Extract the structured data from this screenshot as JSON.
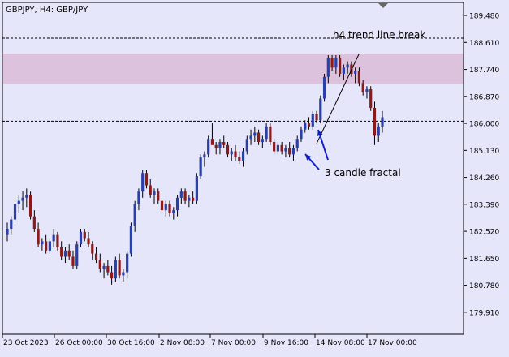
{
  "header": {
    "symbol_label": "GBPJPY, H4:  GBP/JPY"
  },
  "colors": {
    "background": "#e6e6fa",
    "bull_candle": "#2a3fa8",
    "bear_candle": "#8b1a1a",
    "wick": "#000000",
    "zone": "#dcc2dc",
    "arrow": "#1020c8",
    "axis_text": "#000000"
  },
  "annotations": {
    "trend_break_label": "h4 trend line break",
    "fractal_label": "3 candle fractal"
  },
  "chart_data": {
    "type": "candlestick",
    "title": "GBPJPY, H4:  GBP/JPY",
    "ylim": [
      179.2,
      189.9
    ],
    "y_ticks": [
      "189.480",
      "188.610",
      "187.740",
      "186.870",
      "186.000",
      "185.130",
      "184.260",
      "183.390",
      "182.520",
      "181.650",
      "180.780",
      "179.910"
    ],
    "x_ticks": [
      "23 Oct 2023",
      "26 Oct 00:00",
      "30 Oct 16:00",
      "2 Nov 08:00",
      "7 Nov 00:00",
      "9 Nov 16:00",
      "14 Nov 08:00",
      "17 Nov 00:00"
    ],
    "levels": {
      "upper_dashed": 188.75,
      "lower_dashed": 186.07
    },
    "zone": {
      "top": 188.25,
      "bottom": 187.28
    },
    "trendline": {
      "start": 185.35,
      "end": 188.25
    },
    "grid": false,
    "candles": [
      [
        182.4,
        182.8,
        182.2,
        182.6
      ],
      [
        182.6,
        183.0,
        182.4,
        182.9
      ],
      [
        182.9,
        183.6,
        182.8,
        183.4
      ],
      [
        183.4,
        183.7,
        183.1,
        183.5
      ],
      [
        183.5,
        183.8,
        183.2,
        183.6
      ],
      [
        183.6,
        183.9,
        183.3,
        183.7
      ],
      [
        183.7,
        183.8,
        182.9,
        183.0
      ],
      [
        183.0,
        183.2,
        182.5,
        182.6
      ],
      [
        182.6,
        182.8,
        182.0,
        182.1
      ],
      [
        182.1,
        182.3,
        181.9,
        182.2
      ],
      [
        182.2,
        182.4,
        181.8,
        181.9
      ],
      [
        181.9,
        182.3,
        181.8,
        182.2
      ],
      [
        182.2,
        182.6,
        182.0,
        182.4
      ],
      [
        182.4,
        182.5,
        181.9,
        182.0
      ],
      [
        182.0,
        182.2,
        181.6,
        181.7
      ],
      [
        181.7,
        182.0,
        181.5,
        181.9
      ],
      [
        181.9,
        182.1,
        181.6,
        181.7
      ],
      [
        181.7,
        181.9,
        181.3,
        181.4
      ],
      [
        181.4,
        182.2,
        181.3,
        182.1
      ],
      [
        182.1,
        182.6,
        182.0,
        182.5
      ],
      [
        182.5,
        182.6,
        182.2,
        182.3
      ],
      [
        182.3,
        182.5,
        182.0,
        182.1
      ],
      [
        182.1,
        182.2,
        181.6,
        181.8
      ],
      [
        181.8,
        182.0,
        181.5,
        181.6
      ],
      [
        181.6,
        181.8,
        181.2,
        181.3
      ],
      [
        181.3,
        181.5,
        181.0,
        181.4
      ],
      [
        181.4,
        181.6,
        181.1,
        181.2
      ],
      [
        181.2,
        181.4,
        180.8,
        181.0
      ],
      [
        181.0,
        181.7,
        180.9,
        181.6
      ],
      [
        181.6,
        181.8,
        181.0,
        181.1
      ],
      [
        181.1,
        181.3,
        180.9,
        181.2
      ],
      [
        181.2,
        181.9,
        181.0,
        181.8
      ],
      [
        181.8,
        182.8,
        181.7,
        182.7
      ],
      [
        182.7,
        183.5,
        182.5,
        183.4
      ],
      [
        183.4,
        183.9,
        183.2,
        183.8
      ],
      [
        183.8,
        184.5,
        183.6,
        184.4
      ],
      [
        184.4,
        184.5,
        183.9,
        184.0
      ],
      [
        184.0,
        184.2,
        183.6,
        183.7
      ],
      [
        183.7,
        183.9,
        183.4,
        183.8
      ],
      [
        183.8,
        183.9,
        183.4,
        183.5
      ],
      [
        183.5,
        183.6,
        183.1,
        183.2
      ],
      [
        183.2,
        183.5,
        183.0,
        183.4
      ],
      [
        183.4,
        183.5,
        183.0,
        183.1
      ],
      [
        183.1,
        183.3,
        182.9,
        183.2
      ],
      [
        183.2,
        183.7,
        183.0,
        183.6
      ],
      [
        183.6,
        183.9,
        183.4,
        183.8
      ],
      [
        183.8,
        183.9,
        183.4,
        183.5
      ],
      [
        183.5,
        183.7,
        183.3,
        183.6
      ],
      [
        183.6,
        183.8,
        183.4,
        183.5
      ],
      [
        183.5,
        184.4,
        183.4,
        184.3
      ],
      [
        184.3,
        185.0,
        184.2,
        184.9
      ],
      [
        184.9,
        185.1,
        184.6,
        185.0
      ],
      [
        185.0,
        185.6,
        184.9,
        185.5
      ],
      [
        185.5,
        186.0,
        185.4,
        185.3
      ],
      [
        185.3,
        185.4,
        185.0,
        185.2
      ],
      [
        185.2,
        185.5,
        185.0,
        185.4
      ],
      [
        185.4,
        185.6,
        185.2,
        185.3
      ],
      [
        185.3,
        185.4,
        184.9,
        185.0
      ],
      [
        185.0,
        185.2,
        184.8,
        185.1
      ],
      [
        185.1,
        185.3,
        184.8,
        184.9
      ],
      [
        184.9,
        185.1,
        184.7,
        184.8
      ],
      [
        184.8,
        185.2,
        184.6,
        185.1
      ],
      [
        185.1,
        185.6,
        185.0,
        185.5
      ],
      [
        185.5,
        185.8,
        185.3,
        185.6
      ],
      [
        185.6,
        185.9,
        185.4,
        185.7
      ],
      [
        185.7,
        185.8,
        185.3,
        185.4
      ],
      [
        185.4,
        185.6,
        185.2,
        185.5
      ],
      [
        185.5,
        186.0,
        185.4,
        185.9
      ],
      [
        185.9,
        186.0,
        185.3,
        185.4
      ],
      [
        185.4,
        185.5,
        185.0,
        185.1
      ],
      [
        185.1,
        185.4,
        185.0,
        185.3
      ],
      [
        185.3,
        185.4,
        185.0,
        185.1
      ],
      [
        185.1,
        185.3,
        184.9,
        185.2
      ],
      [
        185.2,
        185.4,
        184.9,
        185.0
      ],
      [
        185.0,
        185.3,
        184.8,
        185.2
      ],
      [
        185.2,
        185.6,
        185.1,
        185.5
      ],
      [
        185.5,
        185.9,
        185.4,
        185.8
      ],
      [
        185.8,
        186.1,
        185.7,
        186.0
      ],
      [
        186.0,
        186.2,
        185.8,
        185.9
      ],
      [
        185.9,
        186.4,
        185.8,
        186.3
      ],
      [
        186.3,
        186.4,
        186.0,
        186.1
      ],
      [
        186.1,
        186.9,
        186.0,
        186.8
      ],
      [
        186.8,
        187.6,
        186.7,
        187.5
      ],
      [
        187.5,
        188.2,
        187.3,
        188.1
      ],
      [
        188.1,
        188.2,
        187.7,
        187.8
      ],
      [
        187.8,
        188.2,
        187.6,
        188.1
      ],
      [
        188.1,
        188.2,
        187.5,
        187.6
      ],
      [
        187.6,
        187.9,
        187.4,
        187.8
      ],
      [
        187.8,
        188.0,
        187.6,
        187.9
      ],
      [
        187.9,
        188.0,
        187.5,
        187.6
      ],
      [
        187.6,
        187.8,
        187.3,
        187.7
      ],
      [
        187.7,
        187.8,
        187.2,
        187.3
      ],
      [
        187.3,
        187.4,
        186.9,
        187.0
      ],
      [
        187.0,
        187.2,
        186.8,
        187.1
      ],
      [
        187.1,
        187.2,
        186.4,
        186.5
      ],
      [
        186.5,
        186.7,
        185.3,
        185.6
      ],
      [
        185.6,
        186.0,
        185.4,
        185.9
      ],
      [
        185.9,
        186.4,
        185.7,
        186.2
      ]
    ]
  }
}
